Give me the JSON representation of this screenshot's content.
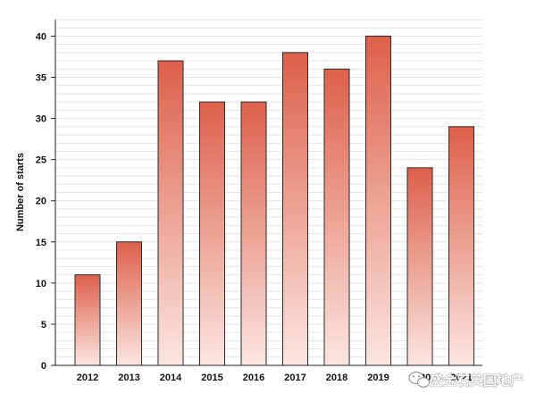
{
  "chart_data": {
    "type": "bar",
    "title": "",
    "xlabel": "",
    "ylabel": "Number of starts",
    "categories": [
      "2012",
      "2013",
      "2014",
      "2015",
      "2016",
      "2017",
      "2018",
      "2019",
      "2020",
      "2021"
    ],
    "values": [
      11,
      15,
      37,
      32,
      32,
      38,
      36,
      40,
      24,
      29
    ],
    "ylim": [
      0,
      42
    ],
    "yticks": [
      0,
      5,
      10,
      15,
      20,
      25,
      30,
      35,
      40
    ],
    "minor_gridlines": true,
    "legend": "none",
    "colors": {
      "bar_top": "#dd604a",
      "bar_bottom": "#fbe6e0",
      "bar_outline": "#2a2a2a",
      "gridline": "#e2e2e2",
      "axis": "#222222"
    }
  },
  "watermark": {
    "text": "盛金石英国地产",
    "icon": "wechat-icon"
  }
}
